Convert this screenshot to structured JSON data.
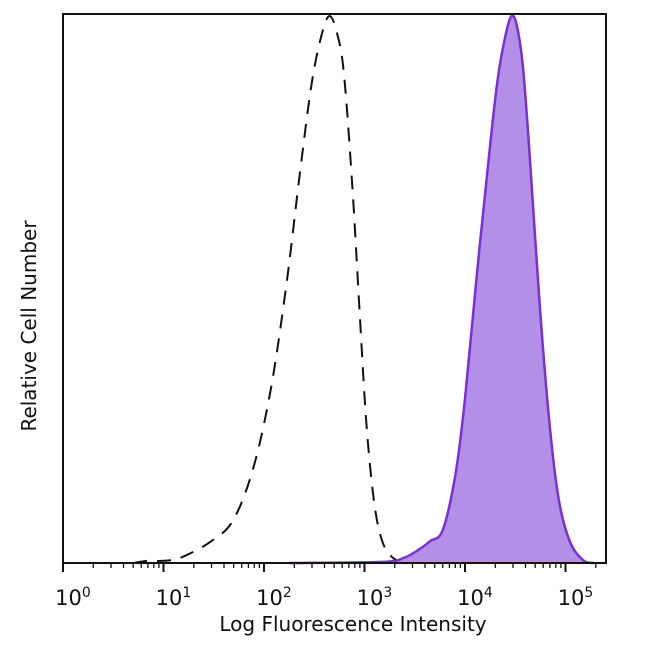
{
  "chart_data": {
    "type": "area",
    "xlabel": "Log Fluorescence Intensity",
    "ylabel": "Relative Cell Number",
    "x_scale": "log",
    "xlim": [
      1,
      200000
    ],
    "ylim": [
      0,
      1
    ],
    "x_ticks": [
      {
        "base": "10",
        "exp": "0",
        "value": 1
      },
      {
        "base": "10",
        "exp": "1",
        "value": 10
      },
      {
        "base": "10",
        "exp": "2",
        "value": 100
      },
      {
        "base": "10",
        "exp": "3",
        "value": 1000
      },
      {
        "base": "10",
        "exp": "4",
        "value": 10000
      },
      {
        "base": "10",
        "exp": "5",
        "value": 100000
      }
    ],
    "grid": false,
    "series": [
      {
        "style": "dashed",
        "color": "#111111",
        "fill": "none",
        "points": [
          [
            5,
            0.0
          ],
          [
            7,
            0.004
          ],
          [
            10,
            0.004
          ],
          [
            15,
            0.01
          ],
          [
            30,
            0.04
          ],
          [
            50,
            0.08
          ],
          [
            80,
            0.18
          ],
          [
            120,
            0.33
          ],
          [
            170,
            0.52
          ],
          [
            230,
            0.72
          ],
          [
            300,
            0.88
          ],
          [
            380,
            0.97
          ],
          [
            450,
            1.0
          ],
          [
            530,
            0.97
          ],
          [
            620,
            0.9
          ],
          [
            750,
            0.7
          ],
          [
            900,
            0.45
          ],
          [
            1050,
            0.25
          ],
          [
            1250,
            0.11
          ],
          [
            1500,
            0.04
          ],
          [
            1900,
            0.01
          ],
          [
            2500,
            0.0
          ]
        ]
      },
      {
        "style": "solid",
        "color": "#7b2fd6",
        "fill": "#b48fe8",
        "points": [
          [
            180,
            0.0
          ],
          [
            1500,
            0.002
          ],
          [
            2500,
            0.01
          ],
          [
            3500,
            0.025
          ],
          [
            4500,
            0.04
          ],
          [
            6000,
            0.06
          ],
          [
            8000,
            0.16
          ],
          [
            10000,
            0.3
          ],
          [
            13000,
            0.52
          ],
          [
            17000,
            0.73
          ],
          [
            21000,
            0.88
          ],
          [
            25000,
            0.96
          ],
          [
            29000,
            1.0
          ],
          [
            33000,
            0.98
          ],
          [
            38000,
            0.9
          ],
          [
            45000,
            0.72
          ],
          [
            55000,
            0.48
          ],
          [
            68000,
            0.27
          ],
          [
            85000,
            0.12
          ],
          [
            110000,
            0.04
          ],
          [
            150000,
            0.005
          ],
          [
            190000,
            0.0
          ]
        ]
      }
    ]
  }
}
